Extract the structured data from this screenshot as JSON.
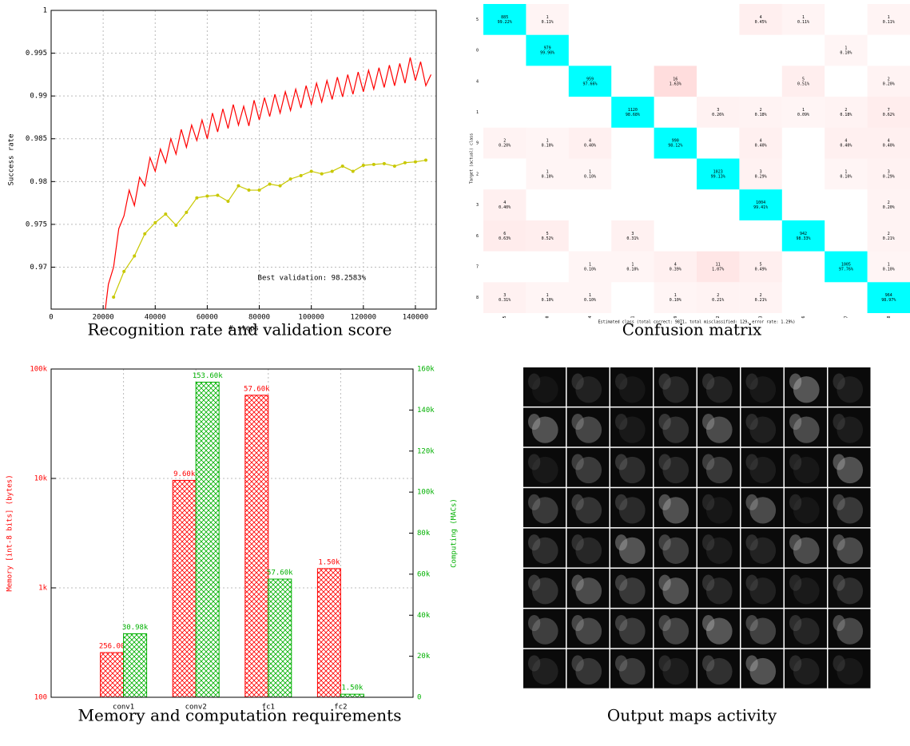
{
  "captions": [
    "Recognition rate and validation score",
    "Confusion matrix",
    "Memory and computation requirements",
    "Output maps activity"
  ],
  "chart_data": [
    {
      "type": "line",
      "xlabel": "# steps",
      "ylabel": "Success rate",
      "annotation": "Best validation: 98.2583%",
      "xlim": [
        0,
        148000
      ],
      "ylim": [
        0.9651,
        1
      ],
      "xticks": [
        0,
        20000,
        40000,
        60000,
        80000,
        100000,
        120000,
        140000
      ],
      "yticks": [
        0.97,
        0.975,
        0.98,
        0.985,
        0.99,
        0.995,
        1
      ],
      "grid": true,
      "series": [
        {
          "color": "#ff0000",
          "markers": false,
          "x": [
            20000,
            22000,
            24000,
            26000,
            28000,
            30000,
            32000,
            34000,
            36000,
            38000,
            40000,
            42000,
            44000,
            46000,
            48000,
            50000,
            52000,
            54000,
            56000,
            58000,
            60000,
            62000,
            64000,
            66000,
            68000,
            70000,
            72000,
            74000,
            76000,
            78000,
            80000,
            82000,
            84000,
            86000,
            88000,
            90000,
            92000,
            94000,
            96000,
            98000,
            100000,
            102000,
            104000,
            106000,
            108000,
            110000,
            112000,
            114000,
            116000,
            118000,
            120000,
            122000,
            124000,
            126000,
            128000,
            130000,
            132000,
            134000,
            136000,
            138000,
            140000,
            142000,
            144000,
            146000
          ],
          "values": [
            0.963,
            0.968,
            0.97,
            0.9745,
            0.976,
            0.979,
            0.9772,
            0.9805,
            0.9795,
            0.9828,
            0.9812,
            0.9838,
            0.9822,
            0.985,
            0.9832,
            0.9861,
            0.984,
            0.9866,
            0.9848,
            0.9872,
            0.985,
            0.988,
            0.9858,
            0.9885,
            0.9862,
            0.989,
            0.9866,
            0.9888,
            0.9865,
            0.9895,
            0.9872,
            0.9898,
            0.9876,
            0.9902,
            0.988,
            0.9905,
            0.9883,
            0.9908,
            0.9886,
            0.9912,
            0.989,
            0.9915,
            0.9893,
            0.9918,
            0.9896,
            0.9922,
            0.9899,
            0.9925,
            0.9902,
            0.9928,
            0.9905,
            0.993,
            0.9908,
            0.9933,
            0.991,
            0.9936,
            0.9912,
            0.9938,
            0.9915,
            0.9945,
            0.9918,
            0.994,
            0.9912,
            0.9925
          ]
        },
        {
          "color": "#c8c800",
          "markers": true,
          "x": [
            24000,
            28000,
            32000,
            36000,
            40000,
            44000,
            48000,
            52000,
            56000,
            60000,
            64000,
            68000,
            72000,
            76000,
            80000,
            84000,
            88000,
            92000,
            96000,
            100000,
            104000,
            108000,
            112000,
            116000,
            120000,
            124000,
            128000,
            132000,
            136000,
            140000,
            144000
          ],
          "values": [
            0.9665,
            0.9695,
            0.9713,
            0.9739,
            0.9752,
            0.9762,
            0.9749,
            0.9764,
            0.9781,
            0.9783,
            0.9784,
            0.9777,
            0.9795,
            0.979,
            0.979,
            0.9797,
            0.9795,
            0.9803,
            0.9807,
            0.9812,
            0.9809,
            0.9812,
            0.9818,
            0.9812,
            0.9819,
            0.982,
            0.9821,
            0.9818,
            0.9822,
            0.9823,
            0.9825
          ]
        }
      ]
    },
    {
      "type": "heatmap",
      "xlabel": "Estimated class (total correct: 9871, total misclassified: 129, error rate: 1.29%)",
      "ylabel": "Target (actual) class",
      "row_labels": [
        "5",
        "0",
        "4",
        "1",
        "9",
        "2",
        "3",
        "6",
        "7",
        "8"
      ],
      "col_labels": [
        "5",
        "0",
        "4",
        "1",
        "9",
        "2",
        "3",
        "6",
        "7",
        "8"
      ],
      "diagonal_color": "#00ffff",
      "error_color": "#ff0000",
      "values": [
        [
          885,
          1,
          null,
          null,
          null,
          null,
          4,
          1,
          null,
          1
        ],
        [
          null,
          979,
          null,
          null,
          null,
          null,
          null,
          null,
          1,
          null
        ],
        [
          null,
          null,
          959,
          null,
          16,
          null,
          null,
          5,
          null,
          2
        ],
        [
          null,
          null,
          null,
          1120,
          null,
          3,
          2,
          1,
          2,
          7
        ],
        [
          2,
          1,
          4,
          null,
          990,
          null,
          4,
          null,
          4,
          4
        ],
        [
          null,
          1,
          1,
          null,
          null,
          1023,
          3,
          null,
          1,
          3
        ],
        [
          4,
          null,
          null,
          null,
          null,
          null,
          1004,
          null,
          null,
          2
        ],
        [
          6,
          5,
          null,
          3,
          null,
          null,
          null,
          942,
          null,
          2
        ],
        [
          null,
          null,
          1,
          1,
          4,
          11,
          5,
          null,
          1005,
          1
        ],
        [
          3,
          1,
          1,
          null,
          1,
          2,
          2,
          null,
          null,
          964
        ]
      ],
      "percents": [
        [
          99.22,
          0.11,
          null,
          null,
          null,
          null,
          0.45,
          0.11,
          null,
          0.11
        ],
        [
          null,
          99.9,
          null,
          null,
          null,
          null,
          null,
          null,
          0.1,
          null
        ],
        [
          null,
          null,
          97.66,
          null,
          1.63,
          null,
          null,
          0.51,
          null,
          0.2
        ],
        [
          null,
          null,
          null,
          98.68,
          null,
          0.26,
          0.18,
          0.09,
          0.18,
          0.62
        ],
        [
          0.2,
          0.1,
          0.4,
          null,
          98.12,
          null,
          0.4,
          null,
          0.4,
          0.4
        ],
        [
          null,
          0.1,
          0.1,
          null,
          null,
          99.13,
          0.29,
          null,
          0.1,
          0.29
        ],
        [
          0.4,
          null,
          null,
          null,
          null,
          null,
          99.41,
          null,
          null,
          0.2
        ],
        [
          0.63,
          0.52,
          null,
          0.31,
          null,
          null,
          null,
          98.33,
          null,
          0.21
        ],
        [
          null,
          null,
          0.1,
          0.1,
          0.39,
          1.07,
          0.49,
          null,
          97.76,
          0.1
        ],
        [
          0.31,
          0.1,
          0.1,
          null,
          0.1,
          0.21,
          0.21,
          null,
          null,
          98.97
        ]
      ],
      "percent_labels": [
        [
          "99.22%",
          "0.11%",
          null,
          null,
          null,
          null,
          "0.45%",
          "0.11%",
          null,
          "0.11%"
        ],
        [
          null,
          "99.90%",
          null,
          null,
          null,
          null,
          null,
          null,
          "0.10%",
          null
        ],
        [
          null,
          null,
          "97.66%",
          null,
          "1.63%",
          null,
          null,
          "0.51%",
          null,
          "0.20%"
        ],
        [
          null,
          null,
          null,
          "98.68%",
          null,
          "0.26%",
          "0.18%",
          "0.09%",
          "0.18%",
          "0.62%"
        ],
        [
          "0.20%",
          "0.10%",
          "0.40%",
          null,
          "98.12%",
          null,
          "0.40%",
          null,
          "0.40%",
          "0.40%"
        ],
        [
          null,
          "0.10%",
          "0.10%",
          null,
          null,
          "99.13%",
          "0.29%",
          null,
          "0.10%",
          "0.29%"
        ],
        [
          "0.40%",
          null,
          null,
          null,
          null,
          null,
          "99.41%",
          null,
          null,
          "0.20%"
        ],
        [
          "0.63%",
          "0.52%",
          null,
          "0.31%",
          null,
          null,
          null,
          "98.33%",
          null,
          "0.21%"
        ],
        [
          null,
          null,
          "0.10%",
          "0.10%",
          "0.39%",
          "1.07%",
          "0.49%",
          null,
          "97.76%",
          "0.10%"
        ],
        [
          "0.31%",
          "0.10%",
          "0.10%",
          null,
          "0.10%",
          "0.21%",
          "0.21%",
          null,
          null,
          "98.97%"
        ]
      ]
    },
    {
      "type": "bar",
      "ylabel": "Memory [int-8 bits] (bytes)",
      "y2label": "Computing (MACs)",
      "categories": [
        "conv1",
        "conv2",
        "fc1",
        "fc2"
      ],
      "ylog": true,
      "grid": true,
      "ylim": [
        100,
        100000
      ],
      "yticks": [
        100,
        {
          "value": 1000,
          "label": "1k"
        },
        {
          "value": 10000,
          "label": "10k"
        },
        {
          "value": 100000,
          "label": "100k"
        }
      ],
      "y2lim": [
        0,
        160000
      ],
      "y2ticks": [
        0,
        {
          "value": 20000,
          "label": "20k"
        },
        {
          "value": 40000,
          "label": "40k"
        },
        {
          "value": 60000,
          "label": "60k"
        },
        {
          "value": 80000,
          "label": "80k"
        },
        {
          "value": 100000,
          "label": "100k"
        },
        {
          "value": 120000,
          "label": "120k"
        },
        {
          "value": 140000,
          "label": "140k"
        },
        {
          "value": 160000,
          "label": "160k"
        }
      ],
      "series": [
        {
          "color": "#ff0000",
          "axis": "y",
          "values": [
            256,
            9600,
            57600,
            1500
          ],
          "value_labels": [
            "256.00",
            "9.60k",
            "57.60k",
            "1.50k"
          ]
        },
        {
          "color": "#00b000",
          "axis": "y2",
          "values": [
            30980,
            153600,
            57600,
            1500
          ],
          "value_labels": [
            "30.98k",
            "153.60k",
            "57.60k",
            "1.50k"
          ]
        }
      ]
    }
  ]
}
